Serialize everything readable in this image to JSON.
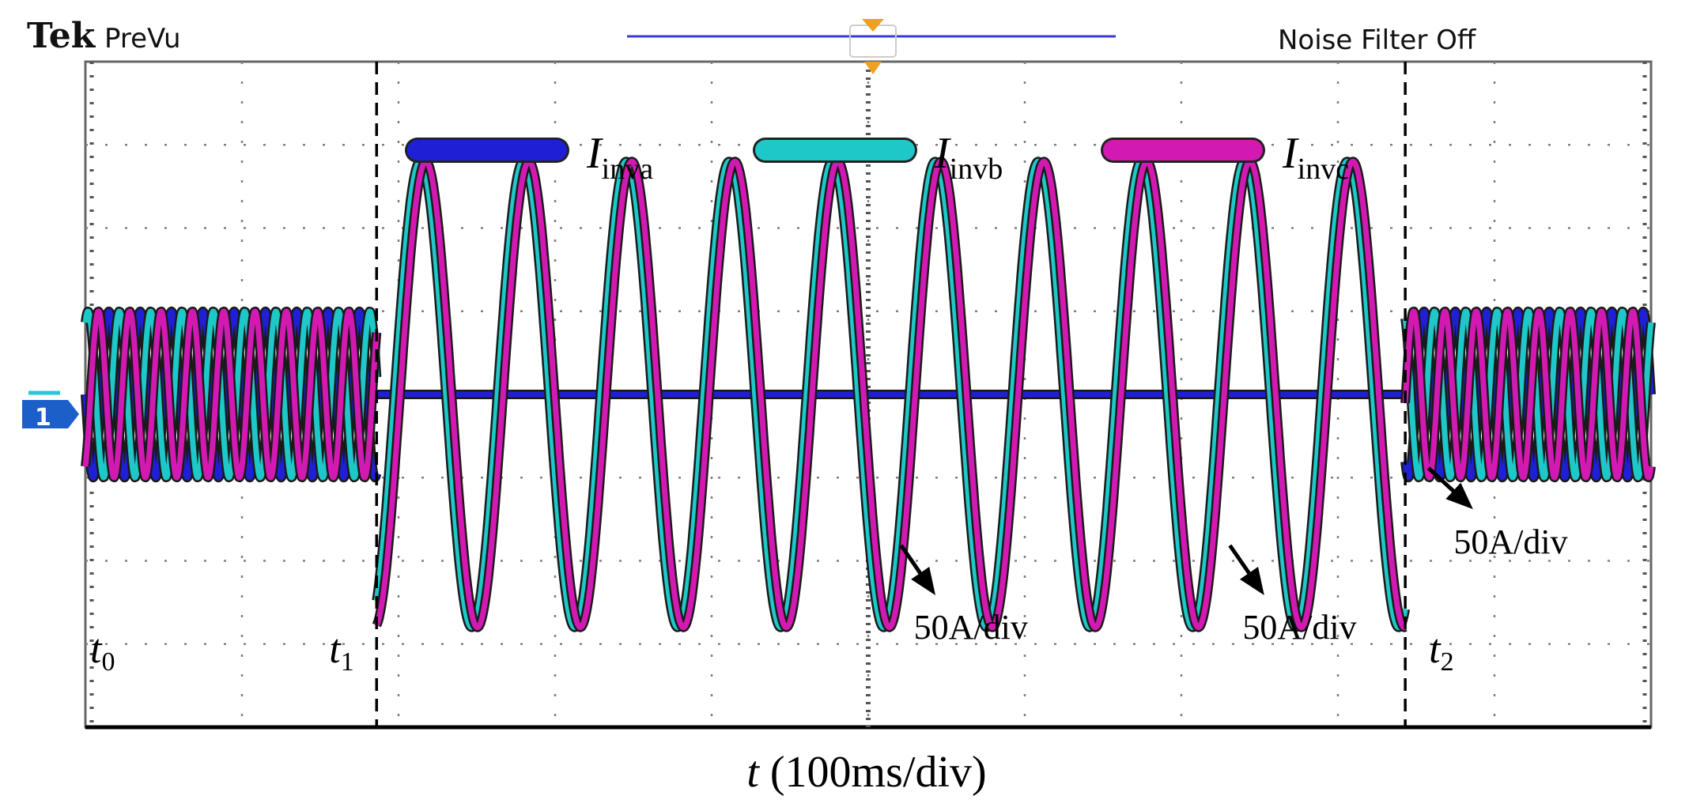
{
  "header": {
    "brand": "Tek",
    "mode": "PreVu",
    "noise_filter": "Noise Filter Off",
    "channel_marker": "1"
  },
  "colors": {
    "ia": "#1f1fd6",
    "ib": "#1ec8c8",
    "ic": "#d21ab2",
    "grid": "#808080",
    "slider": "#3a3ad8",
    "trigger": "#f0a020"
  },
  "chart_data": {
    "type": "line",
    "title": "",
    "xlabel_var": "t",
    "xlabel_unit": " (100ms/div)",
    "x_divisions": 10,
    "y_divisions": 8,
    "xlim": [
      0,
      1000
    ],
    "x_unit": "ms",
    "ylim": [
      -200,
      200
    ],
    "y_unit": "A",
    "scale_label": "50A/div",
    "events": [
      {
        "name": "t0",
        "sym": "t",
        "sub": "0",
        "time_ms": 0
      },
      {
        "name": "t1",
        "sym": "t",
        "sub": "1",
        "time_ms": 186
      },
      {
        "name": "t2",
        "sym": "t",
        "sub": "2",
        "time_ms": 843
      }
    ],
    "series": [
      {
        "name": "Iinva",
        "sym": "I",
        "sub": "inva",
        "color_key": "ia",
        "segments": [
          {
            "t_start": 0,
            "t_end": 186,
            "amplitude": 50,
            "frequency_hz": 50,
            "phase_deg": 180
          },
          {
            "t_start": 186,
            "t_end": 843,
            "amplitude": 0,
            "frequency_hz": 50,
            "phase_deg": 0
          },
          {
            "t_start": 843,
            "t_end": 1000,
            "amplitude": 50,
            "frequency_hz": 50,
            "phase_deg": 180
          }
        ]
      },
      {
        "name": "Iinvb",
        "sym": "I",
        "sub": "invb",
        "color_key": "ib",
        "segments": [
          {
            "t_start": 0,
            "t_end": 186,
            "amplitude": 50,
            "frequency_hz": 50,
            "phase_deg": 60
          },
          {
            "t_start": 186,
            "t_end": 843,
            "amplitude": 140,
            "frequency_hz": 15.2,
            "phase_deg": 0
          },
          {
            "t_start": 843,
            "t_end": 1000,
            "amplitude": 50,
            "frequency_hz": 50,
            "phase_deg": 60
          }
        ]
      },
      {
        "name": "Iinvc",
        "sym": "I",
        "sub": "invc",
        "color_key": "ic",
        "segments": [
          {
            "t_start": 0,
            "t_end": 186,
            "amplitude": 50,
            "frequency_hz": 50,
            "phase_deg": -60
          },
          {
            "t_start": 186,
            "t_end": 843,
            "amplitude": 140,
            "frequency_hz": 15.2,
            "phase_deg": -20
          },
          {
            "t_start": 843,
            "t_end": 1000,
            "amplitude": 50,
            "frequency_hz": 50,
            "phase_deg": -60
          }
        ]
      }
    ],
    "annotations": [
      {
        "text": "50A/div",
        "near_ms": 520,
        "side": "below"
      },
      {
        "text": "50A/div",
        "near_ms": 730,
        "side": "below"
      },
      {
        "text": "50A/div",
        "near_ms": 880,
        "side": "right"
      }
    ]
  }
}
